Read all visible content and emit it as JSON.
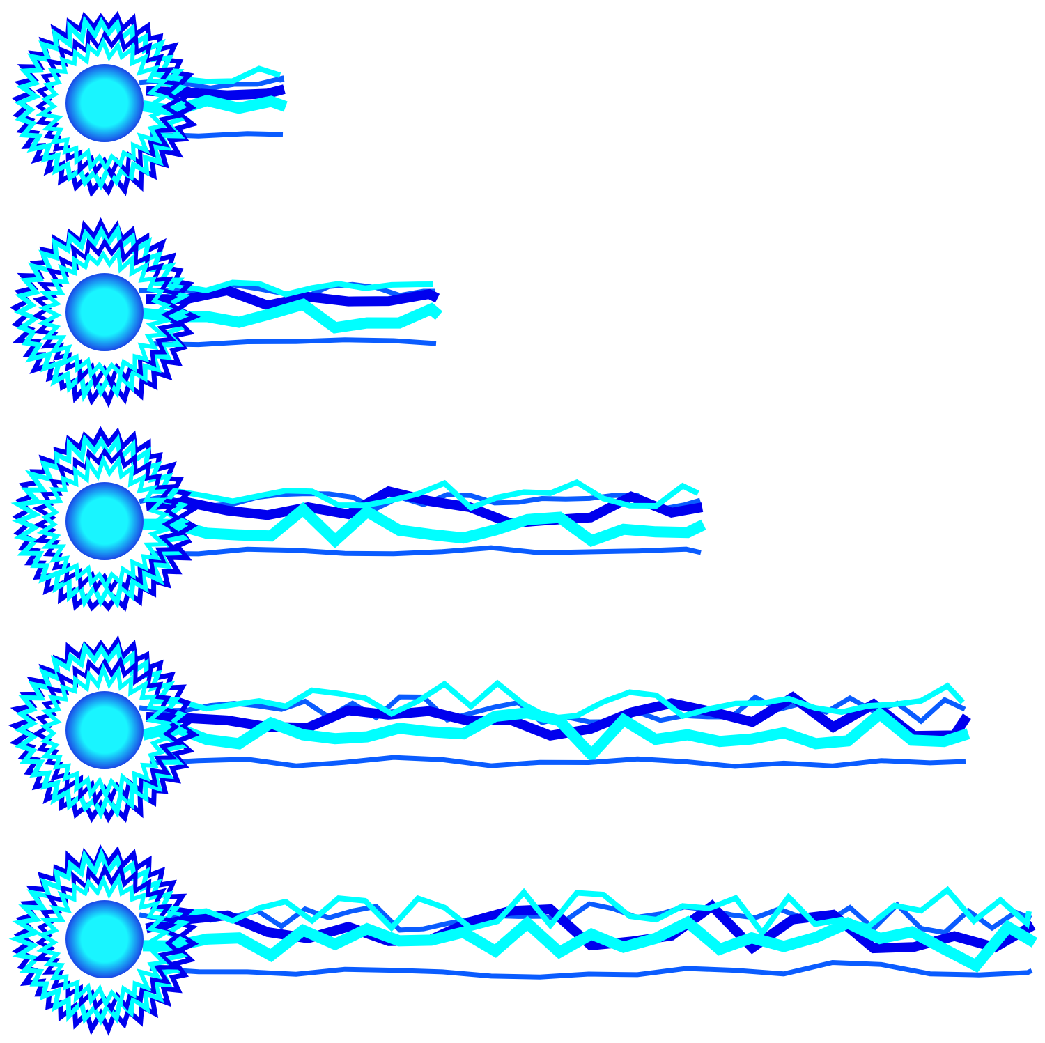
{
  "colors": {
    "background": "#ffffff",
    "blue": "#0000ee",
    "mid_blue": "#0a5cff",
    "cyan": "#00ffff",
    "orb_edge": "#1a4fe8",
    "orb_core": "#19f5ff"
  },
  "rows": [
    {
      "tail_units": 1
    },
    {
      "tail_units": 2
    },
    {
      "tail_units": 4
    },
    {
      "tail_units": 6
    },
    {
      "tail_units": 7
    }
  ]
}
